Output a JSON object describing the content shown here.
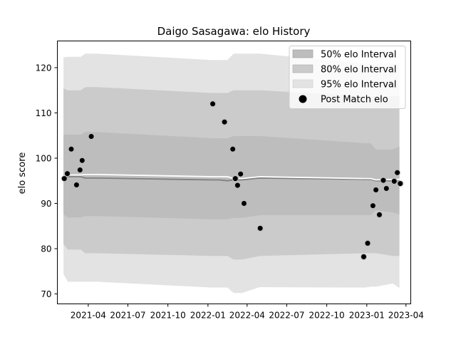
{
  "chart_data": {
    "type": "scatter",
    "title": "Daigo Sasagawa: elo History",
    "xlabel": "",
    "ylabel": "elo score",
    "xlim": [
      "2021-01-20",
      "2023-04-12"
    ],
    "ylim": [
      67.8,
      125.9
    ],
    "x_ticks": [
      "2021-04",
      "2021-07",
      "2021-10",
      "2022-01",
      "2022-04",
      "2022-07",
      "2022-10",
      "2023-01",
      "2023-04"
    ],
    "y_ticks": [
      70,
      80,
      90,
      100,
      110,
      120
    ],
    "grid": false,
    "legend_position": "top-right",
    "legend": {
      "band50": "50% elo Interval",
      "band80": "80% elo Interval",
      "band95": "95% elo Interval",
      "points": "Post Match elo"
    },
    "colors": {
      "band95": "#e3e3e3",
      "band80": "#cbcbcb",
      "band50": "#bdbdbd",
      "mean_line": "#ffffff",
      "median_line": "#808080",
      "points": "#000000"
    },
    "series": [
      {
        "name": "95% elo Interval",
        "x": [
          "2021-02-03",
          "2021-02-13",
          "2021-03-15",
          "2021-03-25",
          "2021-04-08",
          "2021-04-20",
          "2022-01-10",
          "2022-01-27",
          "2022-02-15",
          "2022-03-01",
          "2022-03-10",
          "2022-03-20",
          "2022-04-30",
          "2022-12-27",
          "2023-01-10",
          "2023-01-22",
          "2023-03-02",
          "2023-03-17"
        ],
        "lower": [
          74.4,
          72.7,
          72.7,
          72.7,
          72.7,
          72.7,
          71.4,
          71.4,
          71.4,
          70.2,
          70.2,
          70.2,
          71.5,
          71.4,
          71.6,
          71.6,
          72.3,
          71.3
        ],
        "upper": [
          122.3,
          122.4,
          122.4,
          123.1,
          123.1,
          123.1,
          121.7,
          121.7,
          121.7,
          123.1,
          123.1,
          123.1,
          123.1,
          120.9,
          120.9,
          120.9,
          120.9,
          120.9
        ]
      },
      {
        "name": "80% elo Interval",
        "x": [
          "2021-02-03",
          "2021-02-13",
          "2021-03-15",
          "2021-03-25",
          "2021-04-08",
          "2021-04-20",
          "2022-01-10",
          "2022-01-27",
          "2022-02-15",
          "2022-03-01",
          "2022-03-10",
          "2022-03-20",
          "2022-04-30",
          "2022-12-27",
          "2023-01-10",
          "2023-01-22",
          "2023-03-02",
          "2023-03-17"
        ],
        "lower": [
          81.0,
          79.8,
          79.8,
          79.0,
          79.0,
          79.0,
          78.4,
          78.4,
          78.4,
          77.6,
          77.6,
          77.6,
          78.4,
          79.0,
          79.0,
          79.0,
          78.4,
          78.4
        ],
        "upper": [
          115.4,
          115.0,
          115.0,
          115.7,
          115.7,
          115.7,
          114.4,
          114.4,
          114.4,
          115.0,
          115.0,
          115.0,
          115.0,
          113.7,
          113.7,
          113.7,
          113.7,
          113.7
        ]
      },
      {
        "name": "50% elo Interval",
        "x": [
          "2021-02-03",
          "2021-02-13",
          "2021-03-15",
          "2021-03-25",
          "2021-04-08",
          "2021-04-20",
          "2022-01-10",
          "2022-01-27",
          "2022-02-15",
          "2022-03-01",
          "2022-03-10",
          "2022-03-20",
          "2022-04-30",
          "2022-12-27",
          "2023-01-10",
          "2023-01-22",
          "2023-03-02",
          "2023-03-17"
        ],
        "lower": [
          87.6,
          86.9,
          86.9,
          87.2,
          87.2,
          87.2,
          86.5,
          86.5,
          86.5,
          86.8,
          86.8,
          86.8,
          87.4,
          87.4,
          87.4,
          88.5,
          88.0,
          87.6
        ],
        "upper": [
          105.2,
          105.2,
          105.2,
          105.8,
          105.8,
          105.8,
          104.4,
          104.4,
          104.4,
          104.9,
          104.9,
          104.9,
          104.9,
          103.3,
          103.3,
          101.9,
          101.9,
          102.6
        ]
      },
      {
        "name": "mean",
        "x": [
          "2021-02-03",
          "2021-02-13",
          "2021-03-15",
          "2021-03-25",
          "2021-04-08",
          "2021-04-20",
          "2022-01-10",
          "2022-01-27",
          "2022-02-15",
          "2022-03-01",
          "2022-03-10",
          "2022-03-20",
          "2022-04-30",
          "2022-12-27",
          "2023-01-10",
          "2023-01-22",
          "2023-03-02",
          "2023-03-17"
        ],
        "y": [
          96.0,
          96.3,
          96.3,
          96.4,
          96.4,
          96.4,
          95.9,
          95.9,
          95.9,
          95.5,
          95.5,
          95.5,
          95.9,
          95.5,
          95.5,
          95.2,
          95.3,
          95.3
        ]
      },
      {
        "name": "median",
        "x": [
          "2021-02-03",
          "2021-02-13",
          "2021-03-15",
          "2021-03-25",
          "2021-04-08",
          "2021-04-20",
          "2022-01-10",
          "2022-01-27",
          "2022-02-15",
          "2022-03-01",
          "2022-03-10",
          "2022-03-20",
          "2022-04-30",
          "2022-12-27",
          "2023-01-10",
          "2023-01-22",
          "2023-03-02",
          "2023-03-17"
        ],
        "y": [
          95.6,
          95.9,
          95.9,
          95.6,
          95.6,
          95.6,
          95.2,
          95.2,
          95.0,
          95.2,
          95.2,
          95.2,
          95.6,
          95.3,
          95.3,
          95.0,
          95.0,
          95.0
        ]
      },
      {
        "name": "Post Match elo",
        "x": [
          "2021-02-05",
          "2021-02-12",
          "2021-02-21",
          "2021-03-05",
          "2021-03-13",
          "2021-03-18",
          "2021-04-08",
          "2022-01-12",
          "2022-02-08",
          "2022-02-27",
          "2022-03-05",
          "2022-03-10",
          "2022-03-17",
          "2022-03-25",
          "2022-05-01",
          "2022-12-25",
          "2023-01-03",
          "2023-01-15",
          "2023-01-22",
          "2023-01-30",
          "2023-02-08",
          "2023-02-15",
          "2023-03-05",
          "2023-03-12",
          "2023-03-19"
        ],
        "y": [
          95.5,
          96.6,
          102.0,
          94.1,
          97.4,
          99.5,
          104.8,
          112.0,
          108.0,
          102.0,
          95.5,
          94.0,
          96.5,
          90.0,
          84.5,
          78.2,
          81.2,
          89.5,
          93.0,
          87.5,
          95.1,
          93.3,
          94.9,
          96.8,
          94.4
        ]
      }
    ]
  }
}
